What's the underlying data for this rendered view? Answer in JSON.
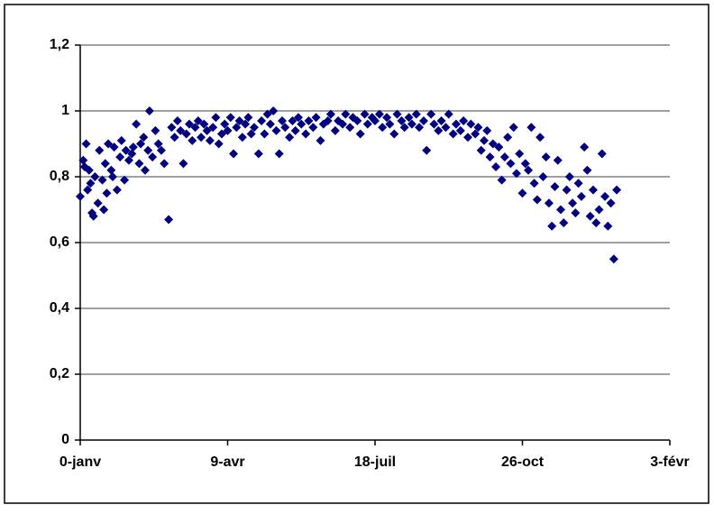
{
  "chart_data": {
    "type": "scatter",
    "x": [
      0,
      2,
      3,
      4,
      5,
      6,
      7,
      8,
      9,
      10,
      12,
      13,
      15,
      16,
      17,
      18,
      19,
      21,
      22,
      23,
      25,
      27,
      28,
      30,
      31,
      33,
      35,
      36,
      38,
      40,
      41,
      43,
      44,
      46,
      47,
      49,
      51,
      53,
      55,
      57,
      60,
      62,
      64,
      66,
      68,
      70,
      72,
      74,
      76,
      78,
      80,
      82,
      84,
      86,
      88,
      90,
      92,
      94,
      96,
      98,
      100,
      102,
      104,
      106,
      108,
      110,
      112,
      114,
      116,
      118,
      121,
      123,
      125,
      127,
      129,
      131,
      133,
      135,
      137,
      139,
      142,
      144,
      146,
      148,
      150,
      153,
      155,
      158,
      160,
      163,
      165,
      168,
      170,
      173,
      175,
      178,
      180,
      183,
      185,
      188,
      190,
      193,
      195,
      198,
      200,
      203,
      205,
      208,
      210,
      213,
      215,
      218,
      220,
      223,
      225,
      228,
      230,
      233,
      235,
      238,
      240,
      243,
      245,
      248,
      250,
      253,
      255,
      258,
      260,
      263,
      265,
      268,
      270,
      272,
      274,
      276,
      278,
      280,
      282,
      284,
      286,
      288,
      290,
      292,
      294,
      296,
      298,
      300,
      302,
      304,
      306,
      308,
      310,
      312,
      314,
      316,
      318,
      320,
      322,
      324,
      326,
      328,
      330,
      332,
      334,
      336,
      338,
      340,
      342,
      344,
      346,
      348,
      350,
      352,
      354,
      356,
      358,
      360,
      362,
      364
    ],
    "values": [
      0.74,
      0.85,
      0.83,
      0.9,
      0.76,
      0.82,
      0.78,
      0.69,
      0.68,
      0.8,
      0.72,
      0.88,
      0.79,
      0.7,
      0.84,
      0.75,
      0.9,
      0.82,
      0.8,
      0.89,
      0.76,
      0.86,
      0.91,
      0.79,
      0.88,
      0.85,
      0.87,
      0.89,
      0.96,
      0.84,
      0.9,
      0.92,
      0.82,
      0.88,
      1.0,
      0.86,
      0.94,
      0.9,
      0.88,
      0.84,
      0.67,
      0.95,
      0.92,
      0.97,
      0.94,
      0.84,
      0.93,
      0.96,
      0.91,
      0.95,
      0.97,
      0.92,
      0.96,
      0.94,
      0.91,
      0.95,
      0.98,
      0.9,
      0.93,
      0.96,
      0.94,
      0.98,
      0.87,
      0.95,
      0.97,
      0.92,
      0.96,
      0.98,
      0.93,
      0.95,
      0.87,
      0.97,
      0.93,
      0.99,
      0.96,
      1.0,
      0.94,
      0.87,
      0.97,
      0.95,
      0.92,
      0.97,
      0.94,
      0.98,
      0.96,
      0.93,
      0.97,
      0.95,
      0.98,
      0.91,
      0.96,
      0.97,
      0.99,
      0.94,
      0.97,
      0.96,
      0.99,
      0.95,
      0.98,
      0.97,
      0.93,
      0.99,
      0.96,
      0.98,
      0.97,
      0.99,
      0.95,
      0.98,
      0.96,
      0.93,
      0.99,
      0.97,
      0.95,
      0.98,
      0.96,
      0.99,
      0.95,
      0.97,
      0.88,
      0.99,
      0.96,
      0.94,
      0.97,
      0.95,
      0.99,
      0.93,
      0.96,
      0.94,
      0.97,
      0.92,
      0.96,
      0.93,
      0.95,
      0.88,
      0.91,
      0.94,
      0.86,
      0.9,
      0.83,
      0.89,
      0.79,
      0.86,
      0.92,
      0.84,
      0.95,
      0.81,
      0.87,
      0.75,
      0.84,
      0.82,
      0.95,
      0.78,
      0.73,
      0.92,
      0.8,
      0.86,
      0.72,
      0.65,
      0.77,
      0.85,
      0.7,
      0.66,
      0.76,
      0.8,
      0.72,
      0.69,
      0.78,
      0.74,
      0.89,
      0.82,
      0.68,
      0.76,
      0.66,
      0.7,
      0.87,
      0.74,
      0.65,
      0.72,
      0.55,
      0.76
    ],
    "color": "#000080",
    "xlim": [
      0,
      400
    ],
    "xticks": [
      {
        "value": 0,
        "label": "0-janv"
      },
      {
        "value": 100,
        "label": "9-avr"
      },
      {
        "value": 200,
        "label": "18-juil"
      },
      {
        "value": 300,
        "label": "26-oct"
      },
      {
        "value": 400,
        "label": "3-févr"
      }
    ],
    "ylim": [
      0,
      1.2
    ],
    "yticks": [
      0,
      {
        "value": 0.2,
        "label": "0,2"
      },
      {
        "value": 0.4,
        "label": "0,4"
      },
      {
        "value": 0.6,
        "label": "0,6"
      },
      {
        "value": 0.8,
        "label": "0,8"
      },
      1,
      {
        "value": 1.2,
        "label": "1,2"
      }
    ],
    "grid": true
  }
}
